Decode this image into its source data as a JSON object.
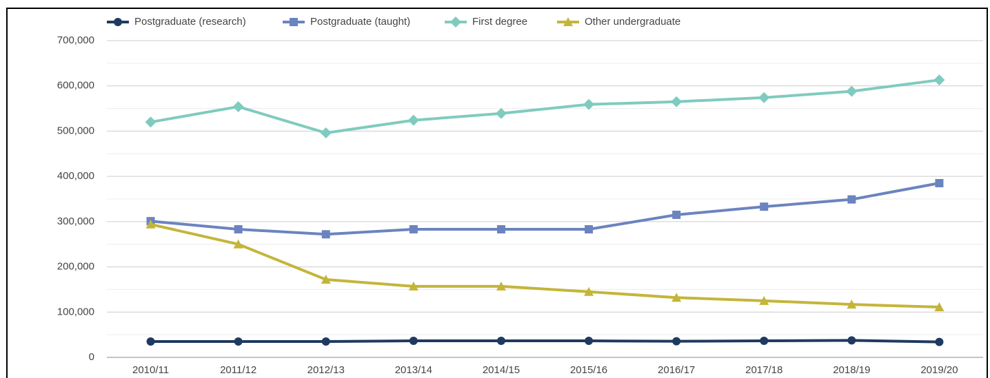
{
  "chart_data": {
    "type": "line",
    "categories": [
      "2010/11",
      "2011/12",
      "2012/13",
      "2013/14",
      "2014/15",
      "2015/16",
      "2016/17",
      "2017/18",
      "2018/19",
      "2019/20"
    ],
    "series": [
      {
        "name": "Postgraduate (research)",
        "color": "#1f3a60",
        "marker": "circle",
        "values": [
          35000,
          35000,
          35000,
          36500,
          36500,
          36500,
          35500,
          36500,
          37500,
          34000
        ]
      },
      {
        "name": "Postgraduate (taught)",
        "color": "#6b84c0",
        "marker": "square",
        "values": [
          301000,
          283000,
          272000,
          283000,
          283000,
          283000,
          315000,
          333000,
          349000,
          385000
        ]
      },
      {
        "name": "First degree",
        "color": "#7fcbbf",
        "marker": "diamond",
        "values": [
          520000,
          554000,
          496000,
          524000,
          539000,
          559000,
          565000,
          574000,
          588000,
          613000
        ]
      },
      {
        "name": "Other undergraduate",
        "color": "#c4b53a",
        "marker": "triangle",
        "values": [
          294000,
          250000,
          172000,
          157000,
          157000,
          145000,
          132000,
          125000,
          117000,
          111000
        ]
      }
    ],
    "ylim": [
      0,
      700000
    ],
    "yticks": [
      0,
      {
        "value": 100000,
        "label": "100,000"
      },
      {
        "value": 200000,
        "label": "200,000"
      },
      {
        "value": 300000,
        "label": "300,000"
      },
      {
        "value": 400000,
        "label": "400,000"
      },
      {
        "value": 500000,
        "label": "500,000"
      },
      {
        "value": 600000,
        "label": "600,000"
      },
      {
        "value": 700000,
        "label": "700,000"
      }
    ],
    "minor_yticks": [
      50000,
      150000,
      250000,
      350000,
      450000,
      550000,
      650000
    ],
    "grid": true,
    "legend": "top"
  }
}
